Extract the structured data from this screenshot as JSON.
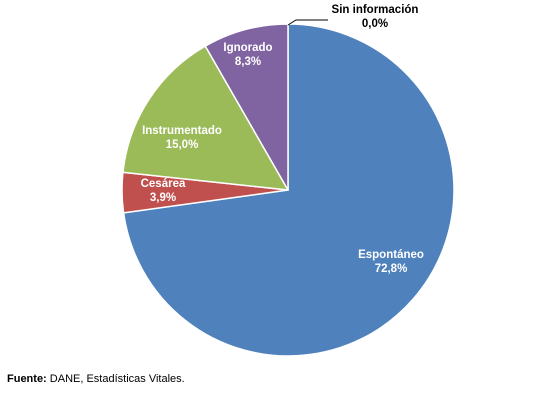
{
  "chart_data": {
    "type": "pie",
    "title": "",
    "start_angle_deg": 0,
    "direction": "clockwise",
    "slices": [
      {
        "label": "Sin información",
        "value": 0.0,
        "value_label": "0,0%",
        "color": "#4f81bd"
      },
      {
        "label": "Espontáneo",
        "value": 72.8,
        "value_label": "72,8%",
        "color": "#4f81bd"
      },
      {
        "label": "Cesárea",
        "value": 3.9,
        "value_label": "3,9%",
        "color": "#c0504d"
      },
      {
        "label": "Instrumentado",
        "value": 15.0,
        "value_label": "15,0%",
        "color": "#9bbb59"
      },
      {
        "label": "Ignorado",
        "value": 8.3,
        "value_label": "8,3%",
        "color": "#8064a2"
      }
    ],
    "slice_border_color": "#ffffff",
    "label_text_color": "#ffffff",
    "outside_label_text_color": "#000000"
  },
  "source": {
    "prefix": "Fuente:",
    "text": " DANE, Estadísticas Vitales."
  }
}
